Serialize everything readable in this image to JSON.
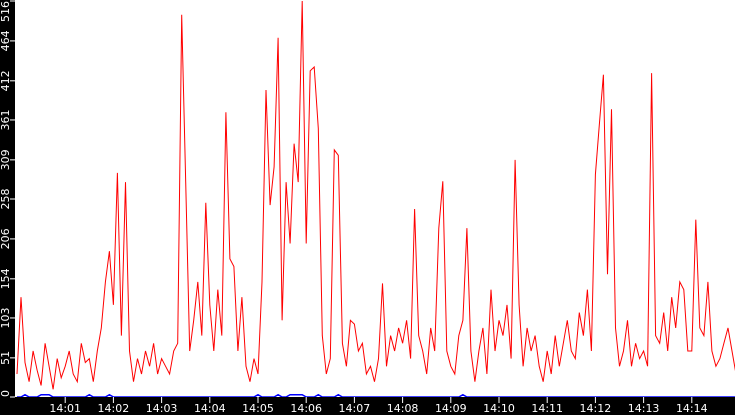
{
  "chart_data": {
    "type": "line",
    "title": "",
    "xlabel": "",
    "ylabel": "",
    "ylim": [
      0,
      516
    ],
    "xlim": [
      "14:00:00",
      "14:15:00"
    ],
    "y_ticks": [
      "0",
      "51",
      "103",
      "154",
      "206",
      "258",
      "309",
      "361",
      "412",
      "464",
      "516"
    ],
    "x_ticks": [
      "14:01",
      "14:02",
      "14:03",
      "14:04",
      "14:05",
      "14:06",
      "14:07",
      "14:08",
      "14:09",
      "14:10",
      "14:11",
      "14:12",
      "14:13",
      "14:14"
    ],
    "grid": false,
    "background": "#000000",
    "plot_background": "#ffffff",
    "x": [
      "14:00:00",
      "14:00:05",
      "14:00:10",
      "14:00:15",
      "14:00:20",
      "14:00:25",
      "14:00:30",
      "14:00:35",
      "14:00:40",
      "14:00:45",
      "14:00:50",
      "14:00:55",
      "14:01:00",
      "14:01:05",
      "14:01:10",
      "14:01:15",
      "14:01:20",
      "14:01:25",
      "14:01:30",
      "14:01:35",
      "14:01:40",
      "14:01:45",
      "14:01:50",
      "14:01:55",
      "14:02:00",
      "14:02:05",
      "14:02:10",
      "14:02:15",
      "14:02:20",
      "14:02:25",
      "14:02:30",
      "14:02:35",
      "14:02:40",
      "14:02:45",
      "14:02:50",
      "14:02:55",
      "14:03:00",
      "14:03:05",
      "14:03:10",
      "14:03:15",
      "14:03:20",
      "14:03:25",
      "14:03:30",
      "14:03:35",
      "14:03:40",
      "14:03:45",
      "14:03:50",
      "14:03:55",
      "14:04:00",
      "14:04:05",
      "14:04:10",
      "14:04:15",
      "14:04:20",
      "14:04:25",
      "14:04:30",
      "14:04:35",
      "14:04:40",
      "14:04:45",
      "14:04:50",
      "14:04:55",
      "14:05:00",
      "14:05:05",
      "14:05:10",
      "14:05:15",
      "14:05:20",
      "14:05:25",
      "14:05:30",
      "14:05:35",
      "14:05:40",
      "14:05:45",
      "14:05:50",
      "14:05:55",
      "14:06:00",
      "14:06:05",
      "14:06:10",
      "14:06:15",
      "14:06:20",
      "14:06:25",
      "14:06:30",
      "14:06:35",
      "14:06:40",
      "14:06:45",
      "14:06:50",
      "14:06:55",
      "14:07:00",
      "14:07:05",
      "14:07:10",
      "14:07:15",
      "14:07:20",
      "14:07:25",
      "14:07:30",
      "14:07:35",
      "14:07:40",
      "14:07:45",
      "14:07:50",
      "14:07:55",
      "14:08:00",
      "14:08:05",
      "14:08:10",
      "14:08:15",
      "14:08:20",
      "14:08:25",
      "14:08:30",
      "14:08:35",
      "14:08:40",
      "14:08:45",
      "14:08:50",
      "14:08:55",
      "14:09:00",
      "14:09:05",
      "14:09:10",
      "14:09:15",
      "14:09:20",
      "14:09:25",
      "14:09:30",
      "14:09:35",
      "14:09:40",
      "14:09:45",
      "14:09:50",
      "14:09:55",
      "14:10:00",
      "14:10:05",
      "14:10:10",
      "14:10:15",
      "14:10:20",
      "14:10:25",
      "14:10:30",
      "14:10:35",
      "14:10:40",
      "14:10:45",
      "14:10:50",
      "14:10:55",
      "14:11:00",
      "14:11:05",
      "14:11:10",
      "14:11:15",
      "14:11:20",
      "14:11:25",
      "14:11:30",
      "14:11:35",
      "14:11:40",
      "14:11:45",
      "14:11:50",
      "14:11:55",
      "14:12:00",
      "14:12:05",
      "14:12:10",
      "14:12:15",
      "14:12:20",
      "14:12:25",
      "14:12:30",
      "14:12:35",
      "14:12:40",
      "14:12:45",
      "14:12:50",
      "14:12:55",
      "14:13:00",
      "14:13:05",
      "14:13:10",
      "14:13:15",
      "14:13:20",
      "14:13:25",
      "14:13:30",
      "14:13:35",
      "14:13:40",
      "14:13:45",
      "14:13:50",
      "14:13:55",
      "14:14:00",
      "14:14:05",
      "14:14:10",
      "14:14:15",
      "14:14:20",
      "14:14:25",
      "14:14:30",
      "14:14:35",
      "14:14:40",
      "14:14:45",
      "14:14:50",
      "14:14:55"
    ],
    "series": [
      {
        "color": "#ff0000",
        "values": [
          30,
          130,
          45,
          20,
          60,
          35,
          15,
          70,
          40,
          10,
          50,
          25,
          40,
          60,
          30,
          20,
          70,
          45,
          50,
          20,
          60,
          90,
          150,
          190,
          120,
          292,
          80,
          280,
          60,
          20,
          50,
          30,
          60,
          40,
          70,
          30,
          50,
          40,
          30,
          60,
          70,
          498,
          280,
          60,
          100,
          150,
          80,
          253,
          120,
          60,
          140,
          80,
          371,
          180,
          170,
          60,
          130,
          40,
          20,
          50,
          30,
          150,
          400,
          250,
          300,
          468,
          100,
          280,
          200,
          330,
          280,
          516,
          200,
          425,
          430,
          350,
          80,
          30,
          50,
          322,
          315,
          70,
          40,
          100,
          95,
          60,
          70,
          30,
          40,
          20,
          50,
          148,
          40,
          80,
          60,
          90,
          70,
          100,
          50,
          245,
          80,
          60,
          30,
          90,
          60,
          220,
          281,
          60,
          40,
          30,
          80,
          100,
          220,
          60,
          20,
          60,
          90,
          30,
          140,
          60,
          100,
          80,
          120,
          50,
          309,
          120,
          40,
          90,
          60,
          80,
          40,
          20,
          60,
          30,
          80,
          40,
          70,
          100,
          60,
          50,
          110,
          80,
          140,
          60,
          290,
          356,
          420,
          160,
          375,
          90,
          40,
          60,
          100,
          40,
          70,
          50,
          60,
          40,
          422,
          80,
          70,
          110,
          60,
          130,
          90,
          150,
          140,
          60,
          60,
          231,
          90,
          80,
          150,
          60,
          40,
          50,
          70,
          90,
          60,
          30
        ]
      },
      {
        "color": "#0000ff",
        "values": [
          0,
          0,
          3,
          0,
          0,
          0,
          3,
          3,
          3,
          0,
          0,
          0,
          0,
          0,
          0,
          0,
          0,
          0,
          3,
          0,
          0,
          0,
          0,
          3,
          0,
          0,
          0,
          0,
          0,
          0,
          0,
          0,
          0,
          0,
          0,
          0,
          0,
          0,
          0,
          0,
          0,
          0,
          0,
          0,
          0,
          0,
          0,
          0,
          0,
          0,
          0,
          0,
          0,
          0,
          0,
          0,
          0,
          0,
          0,
          0,
          3,
          0,
          0,
          0,
          0,
          3,
          0,
          0,
          3,
          3,
          3,
          3,
          0,
          0,
          0,
          3,
          0,
          0,
          0,
          0,
          3,
          0,
          0,
          0,
          0,
          0,
          0,
          0,
          0,
          0,
          0,
          0,
          0,
          0,
          0,
          0,
          0,
          0,
          0,
          0,
          0,
          0,
          0,
          0,
          0,
          0,
          0,
          0,
          0,
          0,
          0,
          3,
          0,
          0,
          0,
          0,
          0,
          0,
          0,
          0,
          0,
          0,
          0,
          0,
          0,
          0,
          0,
          0,
          0,
          0,
          0,
          0,
          0,
          0,
          0,
          0,
          0,
          0,
          0,
          0,
          0,
          0,
          0,
          0,
          0,
          0,
          0,
          0,
          0,
          0,
          0,
          0,
          0,
          0,
          0,
          0,
          0,
          0,
          0,
          0,
          0,
          0,
          0,
          0,
          0,
          0,
          0,
          0,
          0,
          0,
          0,
          0,
          0,
          0,
          0,
          0,
          0,
          0,
          0,
          0
        ]
      }
    ]
  }
}
